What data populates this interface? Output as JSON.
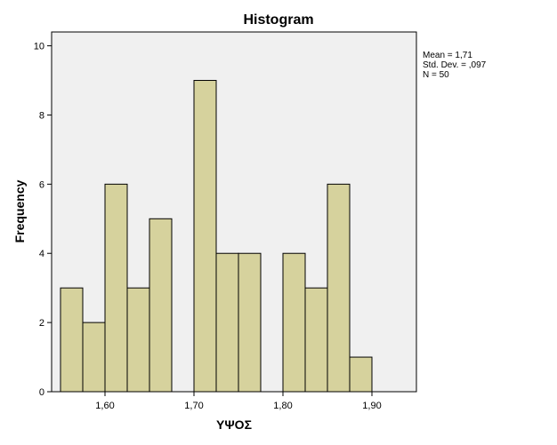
{
  "chart_data": {
    "type": "bar",
    "title": "Histogram",
    "xlabel": "ΥΨΟΣ",
    "ylabel": "Frequency",
    "xlim": [
      1.54,
      1.95
    ],
    "ylim": [
      0,
      10.4
    ],
    "bin_width": 0.025,
    "bins": [
      {
        "start": 1.55,
        "end": 1.575,
        "value": 3
      },
      {
        "start": 1.575,
        "end": 1.6,
        "value": 2
      },
      {
        "start": 1.6,
        "end": 1.625,
        "value": 6
      },
      {
        "start": 1.625,
        "end": 1.65,
        "value": 3
      },
      {
        "start": 1.65,
        "end": 1.675,
        "value": 5
      },
      {
        "start": 1.675,
        "end": 1.7,
        "value": 0
      },
      {
        "start": 1.7,
        "end": 1.725,
        "value": 9
      },
      {
        "start": 1.725,
        "end": 1.75,
        "value": 4
      },
      {
        "start": 1.75,
        "end": 1.775,
        "value": 4
      },
      {
        "start": 1.775,
        "end": 1.8,
        "value": 0
      },
      {
        "start": 1.8,
        "end": 1.825,
        "value": 4
      },
      {
        "start": 1.825,
        "end": 1.85,
        "value": 3
      },
      {
        "start": 1.85,
        "end": 1.875,
        "value": 6
      },
      {
        "start": 1.875,
        "end": 1.9,
        "value": 1
      }
    ],
    "x_ticks": [
      {
        "value": 1.6,
        "label": "1,60"
      },
      {
        "value": 1.7,
        "label": "1,70"
      },
      {
        "value": 1.8,
        "label": "1,80"
      },
      {
        "value": 1.9,
        "label": "1,90"
      }
    ],
    "y_ticks": [
      {
        "value": 0,
        "label": "0"
      },
      {
        "value": 2,
        "label": "2"
      },
      {
        "value": 4,
        "label": "4"
      },
      {
        "value": 6,
        "label": "6"
      },
      {
        "value": 8,
        "label": "8"
      },
      {
        "value": 10,
        "label": "10"
      }
    ],
    "stats": {
      "mean": "Mean = 1,71",
      "std_dev": "Std. Dev. = ,097",
      "n": "N = 50"
    },
    "grid": false,
    "legend": "none",
    "colors": {
      "bar_fill": "#d6d29d",
      "bar_stroke": "#000000",
      "plot_background": "#f0f0f0"
    }
  }
}
